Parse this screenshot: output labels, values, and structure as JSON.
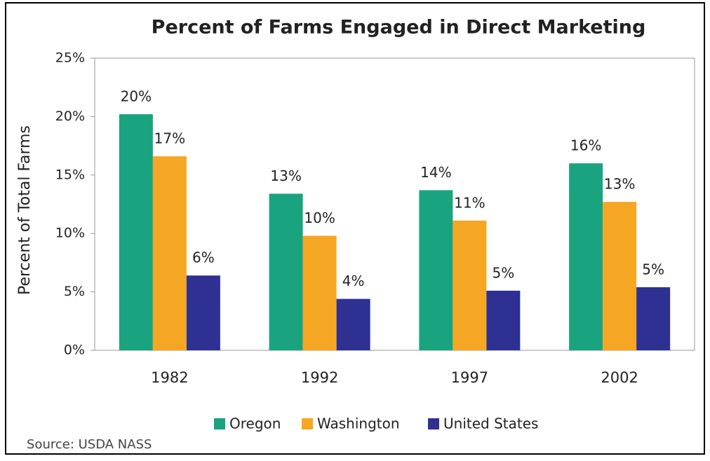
{
  "chart_data": {
    "type": "bar",
    "title": "Percent of Farms Engaged in Direct Marketing",
    "y_label": "Percent of Total Farms",
    "source": "Source: USDA NASS",
    "categories": [
      "1982",
      "1992",
      "1997",
      "2002"
    ],
    "series": [
      {
        "name": "Oregon",
        "color": "#1aa37f",
        "values": [
          20.2,
          13.4,
          13.7,
          16.0
        ],
        "value_labels": [
          "20%",
          "13%",
          "14%",
          "16%"
        ]
      },
      {
        "name": "Washington",
        "color": "#f5a623",
        "values": [
          16.6,
          9.8,
          11.1,
          12.7
        ],
        "value_labels": [
          "17%",
          "10%",
          "11%",
          "13%"
        ]
      },
      {
        "name": "United States",
        "color": "#2e3192",
        "values": [
          6.4,
          4.4,
          5.1,
          5.4
        ],
        "value_labels": [
          "6%",
          "4%",
          "5%",
          "5%"
        ]
      }
    ],
    "ylim": [
      0,
      25
    ],
    "yticks": [
      {
        "value": 0,
        "label": "0%"
      },
      {
        "value": 5,
        "label": "5%"
      },
      {
        "value": 10,
        "label": "10%"
      },
      {
        "value": 15,
        "label": "15%"
      },
      {
        "value": 20,
        "label": "20%"
      },
      {
        "value": 25,
        "label": "25%"
      }
    ],
    "grid": false,
    "legend": "bottom"
  }
}
